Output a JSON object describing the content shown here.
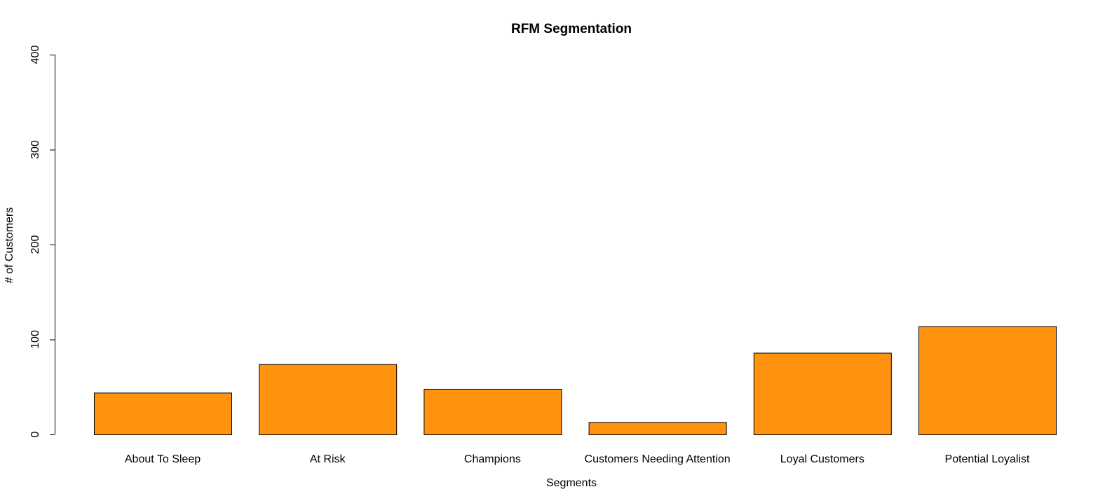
{
  "chart_data": {
    "type": "bar",
    "title": "RFM Segmentation",
    "xlabel": "Segments",
    "ylabel": "# of Customers",
    "categories": [
      "About To Sleep",
      "At Risk",
      "Champions",
      "Customers Needing Attention",
      "Loyal Customers",
      "Potential Loyalist"
    ],
    "values": [
      44,
      74,
      48,
      13,
      86,
      114
    ],
    "ylim": [
      0,
      400
    ],
    "yticks": [
      0,
      100,
      200,
      300,
      400
    ],
    "bar_color": "#FF920F",
    "grid": false,
    "legend": "none"
  }
}
